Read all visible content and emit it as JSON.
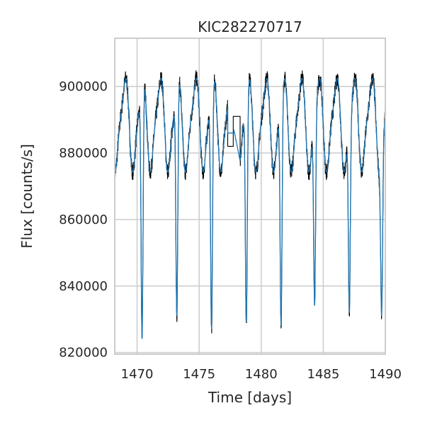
{
  "chart_data": {
    "type": "line",
    "title": "KIC282270717",
    "xlabel": "Time [days]",
    "ylabel": "Flux [counts/s]",
    "xlim": [
      1468.2,
      1490.0
    ],
    "ylim": [
      819500,
      914500
    ],
    "x_ticks": [
      1470,
      1475,
      1480,
      1485,
      1490
    ],
    "y_ticks": [
      820000,
      840000,
      860000,
      880000,
      900000
    ],
    "x_tick_labels": [
      "1470",
      "1475",
      "1480",
      "1485",
      "1490"
    ],
    "y_tick_labels": [
      "820000",
      "840000",
      "860000",
      "880000",
      "900000"
    ],
    "grid": true,
    "gap": [
      1477.3,
      1478.3
    ],
    "eclipse_minima": [
      {
        "t": 1470.4,
        "flux": 824000
      },
      {
        "t": 1473.2,
        "flux": 831000
      },
      {
        "t": 1476.0,
        "flux": 827000
      },
      {
        "t": 1478.8,
        "flux": 829000
      },
      {
        "t": 1481.6,
        "flux": 828000
      },
      {
        "t": 1484.3,
        "flux": 834000
      },
      {
        "t": 1487.1,
        "flux": 832000
      },
      {
        "t": 1489.7,
        "flux": 831000
      }
    ],
    "series": [
      {
        "color": "#000000"
      },
      {
        "color": "#1f77b4"
      }
    ]
  }
}
